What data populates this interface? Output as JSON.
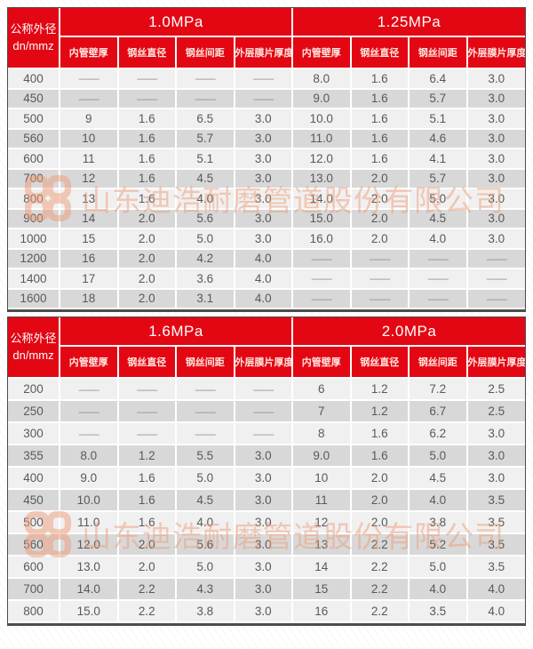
{
  "watermark": {
    "text": "山东迪浩耐磨管道股份有限公司"
  },
  "colors": {
    "header_red": "#e30613",
    "row_light": "#f0f0f0",
    "row_dark": "#d8d8d8",
    "cell_text": "#595959",
    "watermark": "#ee9d77"
  },
  "tables": [
    {
      "id_header": {
        "line1": "公称外径",
        "line2": "dn/mmz"
      },
      "groups": [
        {
          "label": "1.0MPa",
          "subheaders": [
            "内管壁厚",
            "钢丝直径",
            "钢丝间距",
            "外层膜片厚度"
          ]
        },
        {
          "label": "1.25MPa",
          "subheaders": [
            "内管壁厚",
            "钢丝直径",
            "钢丝间距",
            "外层膜片厚度"
          ]
        }
      ],
      "rows": [
        {
          "dn": "400",
          "cells": [
            "——",
            "——",
            "——",
            "——",
            "8.0",
            "1.6",
            "6.4",
            "3.0"
          ]
        },
        {
          "dn": "450",
          "cells": [
            "——",
            "——",
            "——",
            "——",
            "9.0",
            "1.6",
            "5.7",
            "3.0"
          ]
        },
        {
          "dn": "500",
          "cells": [
            "9",
            "1.6",
            "6.5",
            "3.0",
            "10.0",
            "1.6",
            "5.1",
            "3.0"
          ]
        },
        {
          "dn": "560",
          "cells": [
            "10",
            "1.6",
            "5.7",
            "3.0",
            "11.0",
            "1.6",
            "4.6",
            "3.0"
          ]
        },
        {
          "dn": "600",
          "cells": [
            "11",
            "1.6",
            "5.1",
            "3.0",
            "12.0",
            "1.6",
            "4.1",
            "3.0"
          ]
        },
        {
          "dn": "700",
          "cells": [
            "12",
            "1.6",
            "4.5",
            "3.0",
            "13.0",
            "2.0",
            "5.7",
            "3.0"
          ]
        },
        {
          "dn": "800",
          "cells": [
            "13",
            "1.6",
            "4.0",
            "3.0",
            "14.0",
            "2.0",
            "5.0",
            "3.0"
          ]
        },
        {
          "dn": "900",
          "cells": [
            "14",
            "2.0",
            "5.6",
            "3.0",
            "15.0",
            "2.0",
            "4.5",
            "3.0"
          ]
        },
        {
          "dn": "1000",
          "cells": [
            "15",
            "2.0",
            "5.0",
            "3.0",
            "16.0",
            "2.0",
            "4.0",
            "3.0"
          ]
        },
        {
          "dn": "1200",
          "cells": [
            "16",
            "2.0",
            "4.2",
            "4.0",
            "——",
            "——",
            "——",
            "——"
          ]
        },
        {
          "dn": "1400",
          "cells": [
            "17",
            "2.0",
            "3.6",
            "4.0",
            "——",
            "——",
            "——",
            "——"
          ]
        },
        {
          "dn": "1600",
          "cells": [
            "18",
            "2.0",
            "3.1",
            "4.0",
            "——",
            "——",
            "——",
            "——"
          ]
        }
      ]
    },
    {
      "id_header": {
        "line1": "公称外径",
        "line2": "dn/mmz"
      },
      "groups": [
        {
          "label": "1.6MPa",
          "subheaders": [
            "内管壁厚",
            "钢丝直径",
            "钢丝间距",
            "外层膜片厚度"
          ]
        },
        {
          "label": "2.0MPa",
          "subheaders": [
            "内管壁厚",
            "钢丝直径",
            "钢丝间距",
            "外层膜片厚度"
          ]
        }
      ],
      "rows": [
        {
          "dn": "200",
          "cells": [
            "——",
            "——",
            "——",
            "——",
            "6",
            "1.2",
            "7.2",
            "2.5"
          ]
        },
        {
          "dn": "250",
          "cells": [
            "——",
            "——",
            "——",
            "——",
            "7",
            "1.2",
            "6.7",
            "2.5"
          ]
        },
        {
          "dn": "300",
          "cells": [
            "——",
            "——",
            "——",
            "——",
            "8",
            "1.6",
            "6.2",
            "3.0"
          ]
        },
        {
          "dn": "355",
          "cells": [
            "8.0",
            "1.2",
            "5.5",
            "3.0",
            "9.0",
            "1.6",
            "5.0",
            "3.0"
          ]
        },
        {
          "dn": "400",
          "cells": [
            "9.0",
            "1.6",
            "5.0",
            "3.0",
            "10",
            "2.0",
            "4.5",
            "3.0"
          ]
        },
        {
          "dn": "450",
          "cells": [
            "10.0",
            "1.6",
            "4.5",
            "3.0",
            "11",
            "2.0",
            "4.0",
            "3.5"
          ]
        },
        {
          "dn": "500",
          "cells": [
            "11.0",
            "1.6",
            "4.0",
            "3.0",
            "12",
            "2.0",
            "3.8",
            "3.5"
          ]
        },
        {
          "dn": "560",
          "cells": [
            "12.0",
            "2.0",
            "5.6",
            "3.0",
            "13",
            "2.2",
            "5.2",
            "3.5"
          ]
        },
        {
          "dn": "600",
          "cells": [
            "13.0",
            "2.0",
            "5.0",
            "3.0",
            "14",
            "2.2",
            "5.0",
            "3.5"
          ]
        },
        {
          "dn": "700",
          "cells": [
            "14.0",
            "2.2",
            "4.3",
            "3.0",
            "15",
            "2.2",
            "4.0",
            "4.0"
          ]
        },
        {
          "dn": "800",
          "cells": [
            "15.0",
            "2.2",
            "3.8",
            "3.0",
            "16",
            "2.2",
            "3.5",
            "4.0"
          ]
        }
      ]
    }
  ]
}
